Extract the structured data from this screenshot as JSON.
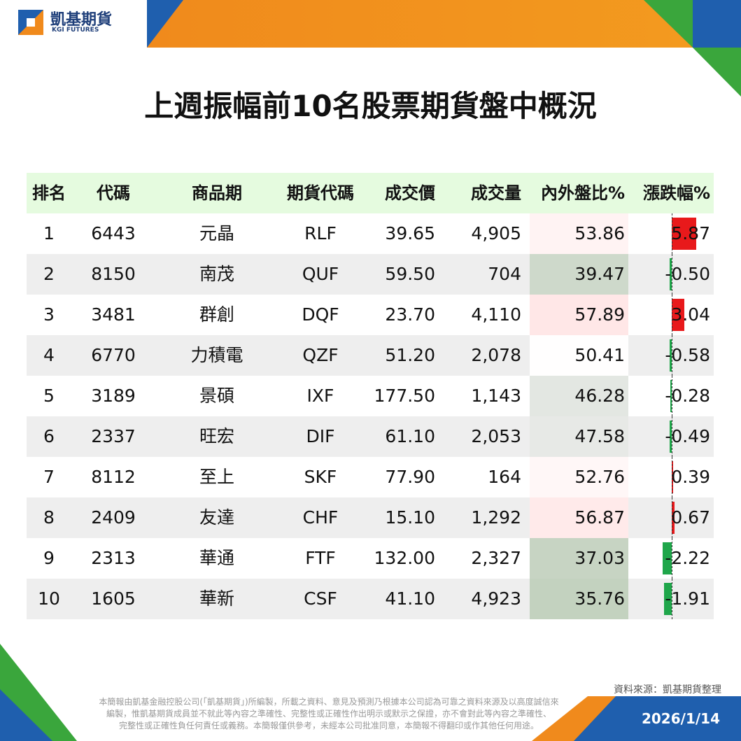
{
  "header": {
    "brand": "凱基期貨",
    "brand_en": "KGI FUTURES"
  },
  "title": "上週振幅前10名股票期貨盤中概況",
  "table": {
    "columns": [
      "排名",
      "代碼",
      "商品期",
      "期貨代碼",
      "成交價",
      "成交量",
      "內外盤比%",
      "漲跌幅%"
    ],
    "rows": [
      [
        "1",
        "6443",
        "元晶",
        "RLF",
        "39.65",
        "4,905",
        "53.86",
        "5.87"
      ],
      [
        "2",
        "8150",
        "南茂",
        "QUF",
        "59.50",
        "704",
        "39.47",
        "-0.50"
      ],
      [
        "3",
        "3481",
        "群創",
        "DQF",
        "23.70",
        "4,110",
        "57.89",
        "3.04"
      ],
      [
        "4",
        "6770",
        "力積電",
        "QZF",
        "51.20",
        "2,078",
        "50.41",
        "-0.58"
      ],
      [
        "5",
        "3189",
        "景碩",
        "IXF",
        "177.50",
        "1,143",
        "46.28",
        "-0.28"
      ],
      [
        "6",
        "2337",
        "旺宏",
        "DIF",
        "61.10",
        "2,053",
        "47.58",
        "-0.49"
      ],
      [
        "7",
        "8112",
        "至上",
        "SKF",
        "77.90",
        "164",
        "52.76",
        "0.39"
      ],
      [
        "8",
        "2409",
        "友達",
        "CHF",
        "15.10",
        "1,292",
        "56.87",
        "0.67"
      ],
      [
        "9",
        "2313",
        "華通",
        "FTF",
        "132.00",
        "2,327",
        "37.03",
        "-2.22"
      ],
      [
        "10",
        "1605",
        "華新",
        "CSF",
        "41.10",
        "4,923",
        "35.76",
        "-1.91"
      ]
    ]
  },
  "footer": {
    "source": "資料來源：凱基期貨整理",
    "disclaimer": [
      "本簡報由凱基金融控股公司(「凱基期貨」)所編製，所載之資料、意見及預測乃根據本公司認為可靠之資料來源及以高度誠信來",
      "編製，惟凱基期貨成員並不就此等內容之準確性、完整性或正確性作出明示或默示之保證，亦不會對此等內容之準確性、",
      "完整性或正確性負任何責任或義務。本簡報僅供參考，未經本公司批准同意，本簡報不得翻印或作其他任何用途。"
    ],
    "date": "2026/1/14"
  }
}
